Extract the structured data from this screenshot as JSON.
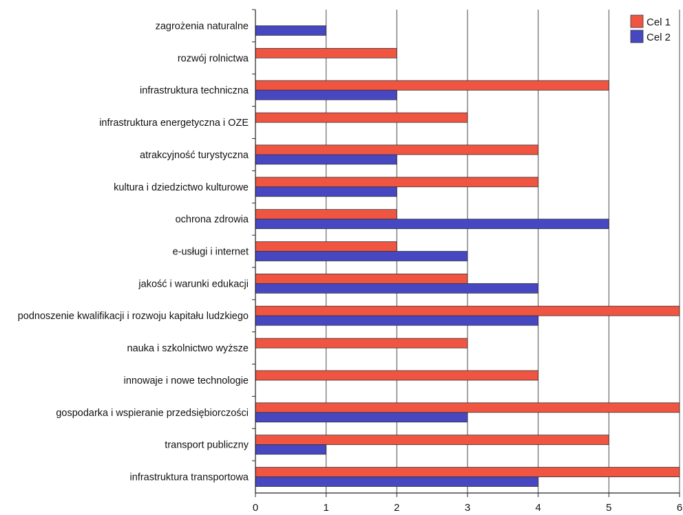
{
  "chart_data": {
    "type": "bar",
    "orientation": "horizontal",
    "categories": [
      "zagrożenia naturalne",
      "rozwój rolnictwa",
      "infrastruktura techniczna",
      "infrastruktura energetyczna i OZE",
      "atrakcyjność turystyczna",
      "kultura i dziedzictwo kulturowe",
      "ochrona zdrowia",
      "e-usługi i internet",
      "jakość i warunki edukacji",
      "podnoszenie kwalifikacji i rozwoju kapitału ludzkiego",
      "nauka i szkolnictwo wyższe",
      "innowaje i nowe technologie",
      "gospodarka i wspieranie przedsiębiorczości",
      "transport publiczny",
      "infrastruktura transportowa"
    ],
    "series": [
      {
        "name": "Cel 1",
        "color": "#f05542",
        "values": [
          0,
          2,
          5,
          3,
          4,
          4,
          2,
          2,
          3,
          6,
          3,
          4,
          6,
          5,
          6
        ]
      },
      {
        "name": "Cel 2",
        "color": "#4747c2",
        "values": [
          1,
          0,
          2,
          0,
          2,
          2,
          5,
          3,
          4,
          4,
          0,
          0,
          3,
          1,
          4
        ]
      }
    ],
    "xlim": [
      0,
      6
    ],
    "xticks": [
      "0",
      "1",
      "2",
      "3",
      "4",
      "5",
      "6"
    ],
    "title": "",
    "xlabel": "",
    "ylabel": "",
    "grid": "vertical",
    "legend": "top-right"
  }
}
